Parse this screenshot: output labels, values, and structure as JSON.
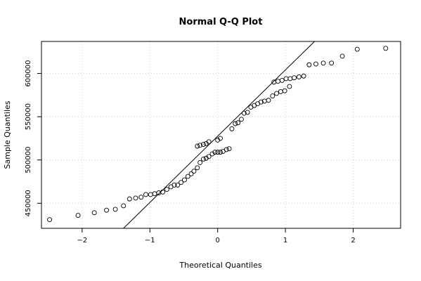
{
  "chart_data": {
    "type": "scatter",
    "title": "Normal Q-Q Plot",
    "xlabel": "Theoretical Quantiles",
    "ylabel": "Sample Quantiles",
    "xlim": [
      -2.6,
      2.7
    ],
    "ylim": [
      421000,
      637000
    ],
    "x_ticks": [
      -2,
      -1,
      0,
      1,
      2
    ],
    "x_tick_labels": [
      "−2",
      "−1",
      "0",
      "1",
      "2"
    ],
    "y_ticks": [
      450000,
      500000,
      550000,
      600000
    ],
    "y_tick_labels": [
      "450000",
      "500000",
      "550000",
      "600000"
    ],
    "grid": true,
    "reference_line": {
      "x": [
        -1.39,
        1.43
      ],
      "y": [
        421000,
        637000
      ]
    },
    "points": [
      [
        -2.48,
        431000
      ],
      [
        -2.06,
        436000
      ],
      [
        -1.82,
        439000
      ],
      [
        -1.64,
        442000
      ],
      [
        -1.51,
        443000
      ],
      [
        -1.39,
        447000
      ],
      [
        -1.3,
        455000
      ],
      [
        -1.21,
        456000
      ],
      [
        -1.13,
        457000
      ],
      [
        -1.06,
        460000
      ],
      [
        -0.99,
        460000
      ],
      [
        -0.93,
        461000
      ],
      [
        -0.87,
        462000
      ],
      [
        -0.81,
        463000
      ],
      [
        -0.75,
        466000
      ],
      [
        -0.69,
        469000
      ],
      [
        -0.64,
        471000
      ],
      [
        -0.59,
        471000
      ],
      [
        -0.54,
        474000
      ],
      [
        -0.49,
        477000
      ],
      [
        -0.44,
        481000
      ],
      [
        -0.39,
        484000
      ],
      [
        -0.35,
        487000
      ],
      [
        -0.3,
        491000
      ],
      [
        -0.26,
        497000
      ],
      [
        -0.21,
        501000
      ],
      [
        -0.17,
        502000
      ],
      [
        -0.13,
        504000
      ],
      [
        -0.08,
        507000
      ],
      [
        -0.04,
        509000
      ],
      [
        0.0,
        509000
      ],
      [
        0.04,
        509000
      ],
      [
        0.08,
        510000
      ],
      [
        0.13,
        512000
      ],
      [
        0.17,
        513000
      ],
      [
        -0.3,
        516000
      ],
      [
        -0.26,
        517000
      ],
      [
        -0.21,
        518000
      ],
      [
        -0.17,
        519000
      ],
      [
        -0.13,
        521000
      ],
      [
        0.0,
        523000
      ],
      [
        0.04,
        525000
      ],
      [
        0.21,
        536000
      ],
      [
        0.26,
        542000
      ],
      [
        0.3,
        543000
      ],
      [
        0.35,
        547000
      ],
      [
        0.39,
        554000
      ],
      [
        0.44,
        555000
      ],
      [
        0.49,
        561000
      ],
      [
        0.54,
        563000
      ],
      [
        0.59,
        565000
      ],
      [
        0.64,
        567000
      ],
      [
        0.69,
        568000
      ],
      [
        0.75,
        569000
      ],
      [
        0.81,
        574000
      ],
      [
        0.87,
        577000
      ],
      [
        0.93,
        579000
      ],
      [
        0.99,
        580000
      ],
      [
        1.06,
        585000
      ],
      [
        0.83,
        590000
      ],
      [
        0.89,
        591000
      ],
      [
        0.95,
        592000
      ],
      [
        1.01,
        594000
      ],
      [
        1.07,
        594000
      ],
      [
        1.13,
        595000
      ],
      [
        1.2,
        596000
      ],
      [
        1.27,
        597000
      ],
      [
        1.35,
        610000
      ],
      [
        1.45,
        611000
      ],
      [
        1.56,
        612000
      ],
      [
        1.68,
        612000
      ],
      [
        1.84,
        620000
      ],
      [
        2.06,
        628000
      ],
      [
        2.48,
        629000
      ]
    ]
  }
}
